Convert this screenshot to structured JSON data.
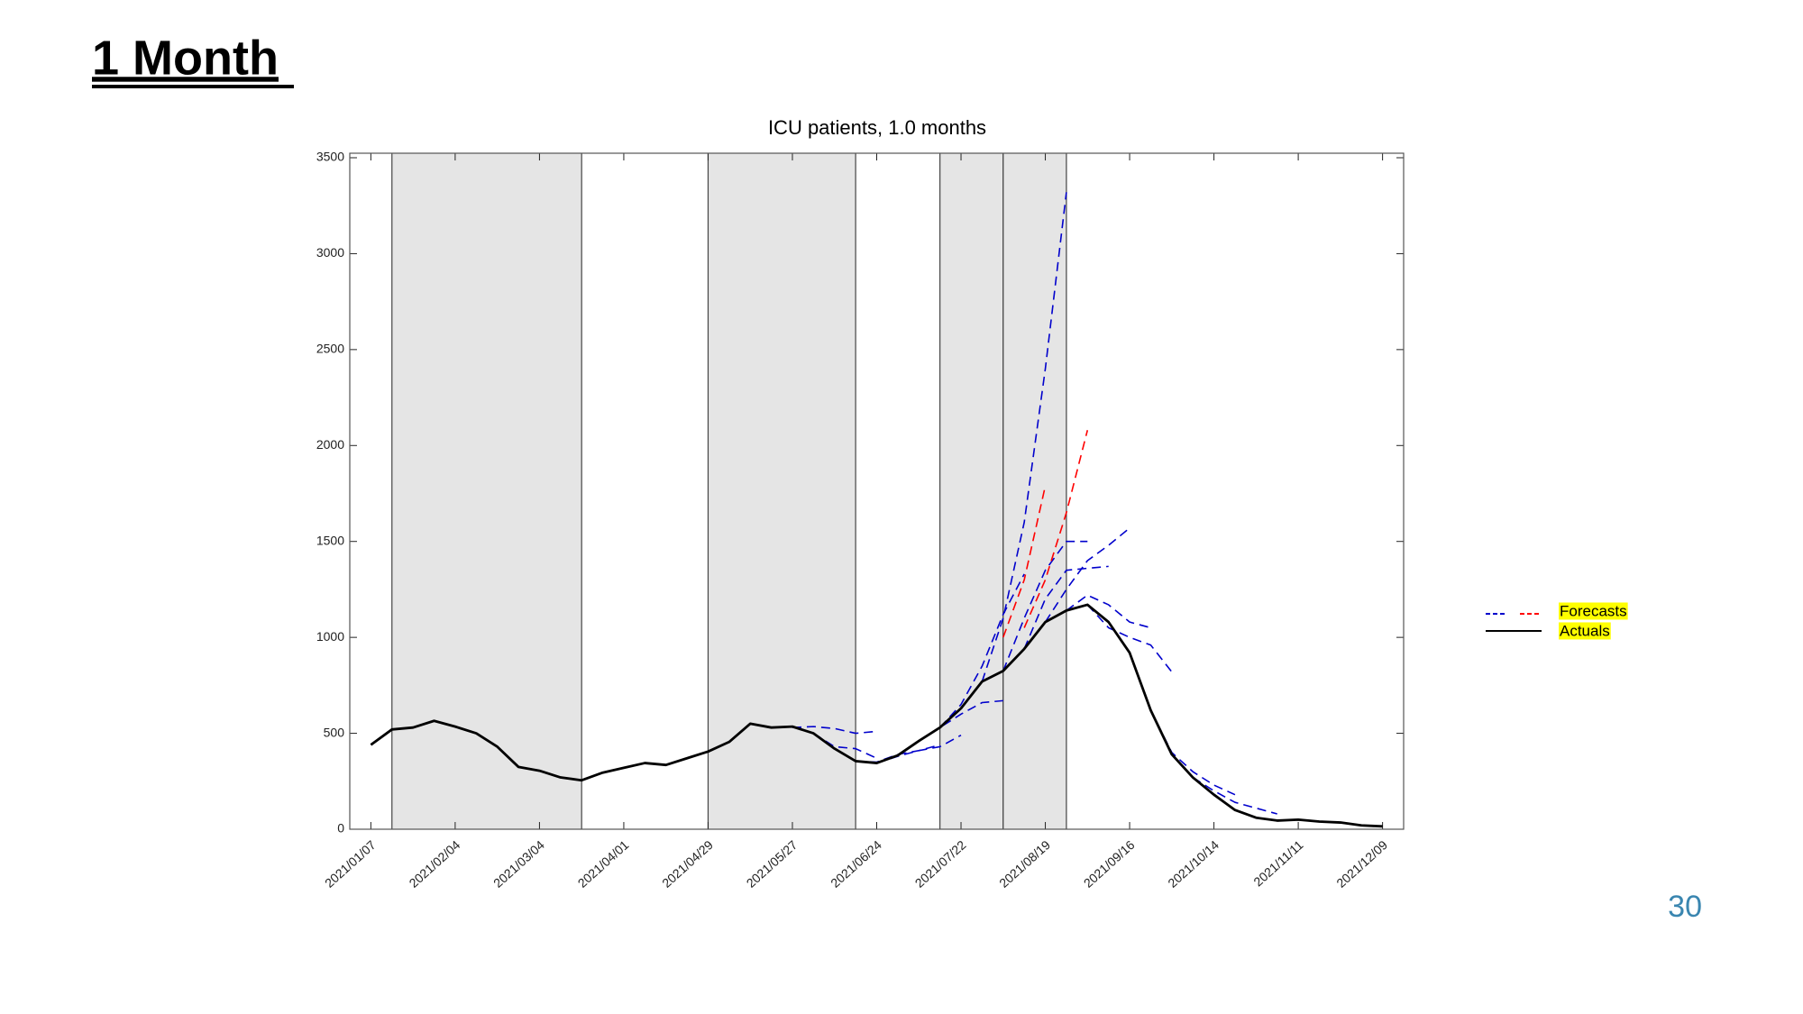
{
  "slide": {
    "title": "1 Month",
    "page_number": 30
  },
  "chart_data": {
    "type": "line",
    "title": "ICU patients, 1.0 months",
    "xlim": [
      "2020/12/31",
      "2021/12/16"
    ],
    "xticks": [
      "2021/01/07",
      "2021/02/04",
      "2021/03/04",
      "2021/04/01",
      "2021/04/29",
      "2021/05/27",
      "2021/06/24",
      "2021/07/22",
      "2021/08/19",
      "2021/09/16",
      "2021/10/14",
      "2021/11/11",
      "2021/12/09"
    ],
    "ylim": [
      0,
      3500
    ],
    "yticks": [
      0,
      500,
      1000,
      1500,
      2000,
      2500,
      3000,
      3500
    ],
    "shaded_regions": [
      [
        "2021/01/14",
        "2021/03/18"
      ],
      [
        "2021/04/29",
        "2021/06/17"
      ],
      [
        "2021/07/15",
        "2021/08/05"
      ],
      [
        "2021/08/05",
        "2021/08/26"
      ]
    ],
    "x": [
      "2021/01/07",
      "2021/01/14",
      "2021/01/21",
      "2021/01/28",
      "2021/02/04",
      "2021/02/11",
      "2021/02/18",
      "2021/02/25",
      "2021/03/04",
      "2021/03/11",
      "2021/03/18",
      "2021/03/25",
      "2021/04/01",
      "2021/04/08",
      "2021/04/15",
      "2021/04/22",
      "2021/04/29",
      "2021/05/06",
      "2021/05/13",
      "2021/05/20",
      "2021/05/27",
      "2021/06/03",
      "2021/06/10",
      "2021/06/17",
      "2021/06/24",
      "2021/07/01",
      "2021/07/08",
      "2021/07/15",
      "2021/07/22",
      "2021/07/29",
      "2021/08/05",
      "2021/08/12",
      "2021/08/19",
      "2021/08/26",
      "2021/09/02",
      "2021/09/09",
      "2021/09/16",
      "2021/09/23",
      "2021/09/30",
      "2021/10/07",
      "2021/10/14",
      "2021/10/21",
      "2021/10/28",
      "2021/11/04",
      "2021/11/11",
      "2021/11/18",
      "2021/11/25",
      "2021/12/02",
      "2021/12/09"
    ],
    "series": [
      {
        "name": "Actuals",
        "color": "#000000",
        "values": [
          440,
          520,
          530,
          565,
          535,
          500,
          430,
          325,
          305,
          270,
          255,
          295,
          320,
          345,
          335,
          370,
          405,
          455,
          550,
          530,
          535,
          500,
          420,
          355,
          345,
          385,
          460,
          530,
          630,
          770,
          825,
          940,
          1080,
          1140,
          1170,
          1080,
          920,
          620,
          390,
          270,
          180,
          100,
          60,
          45,
          50,
          40,
          35,
          20,
          15
        ]
      }
    ],
    "forecasts": {
      "name": "Forecasts",
      "series": [
        {
          "color": "#0000cc",
          "x": [
            "2021/05/27",
            "2021/06/03",
            "2021/06/10",
            "2021/06/17",
            "2021/06/24"
          ],
          "values": [
            530,
            535,
            525,
            500,
            510
          ]
        },
        {
          "color": "#0000cc",
          "x": [
            "2021/06/03",
            "2021/06/10",
            "2021/06/17",
            "2021/06/24"
          ],
          "values": [
            500,
            430,
            420,
            370
          ]
        },
        {
          "color": "#0000cc",
          "x": [
            "2021/06/17",
            "2021/06/24",
            "2021/07/01",
            "2021/07/08",
            "2021/07/15"
          ],
          "values": [
            355,
            350,
            390,
            410,
            440
          ]
        },
        {
          "color": "#0000cc",
          "x": [
            "2021/06/24",
            "2021/07/01",
            "2021/07/08",
            "2021/07/15",
            "2021/07/22"
          ],
          "values": [
            345,
            380,
            410,
            430,
            490
          ]
        },
        {
          "color": "#0000cc",
          "x": [
            "2021/07/08",
            "2021/07/15",
            "2021/07/22",
            "2021/07/29",
            "2021/08/05"
          ],
          "values": [
            460,
            530,
            600,
            660,
            670
          ]
        },
        {
          "color": "#0000cc",
          "x": [
            "2021/07/15",
            "2021/07/22",
            "2021/07/29",
            "2021/08/05",
            "2021/08/12"
          ],
          "values": [
            530,
            650,
            850,
            1120,
            1330
          ]
        },
        {
          "color": "#0000cc",
          "x": [
            "2021/07/29",
            "2021/08/05",
            "2021/08/12",
            "2021/08/19",
            "2021/08/26"
          ],
          "values": [
            770,
            1100,
            1600,
            2400,
            3320
          ]
        },
        {
          "color": "#0000cc",
          "x": [
            "2021/08/05",
            "2021/08/12",
            "2021/08/19",
            "2021/08/26",
            "2021/09/02"
          ],
          "values": [
            825,
            1100,
            1350,
            1500,
            1500
          ]
        },
        {
          "color": "#0000cc",
          "x": [
            "2021/08/12",
            "2021/08/19",
            "2021/08/26",
            "2021/09/02",
            "2021/09/09"
          ],
          "values": [
            940,
            1200,
            1350,
            1360,
            1370
          ]
        },
        {
          "color": "#0000cc",
          "x": [
            "2021/08/19",
            "2021/08/26",
            "2021/09/02",
            "2021/09/09",
            "2021/09/16"
          ],
          "values": [
            1080,
            1250,
            1400,
            1480,
            1570
          ]
        },
        {
          "color": "#0000cc",
          "x": [
            "2021/08/26",
            "2021/09/02",
            "2021/09/09",
            "2021/09/16",
            "2021/09/23"
          ],
          "values": [
            1140,
            1220,
            1170,
            1080,
            1050
          ]
        },
        {
          "color": "#0000cc",
          "x": [
            "2021/09/02",
            "2021/09/09",
            "2021/09/16",
            "2021/09/23",
            "2021/09/30"
          ],
          "values": [
            1170,
            1050,
            1000,
            960,
            820
          ]
        },
        {
          "color": "#0000cc",
          "x": [
            "2021/09/23",
            "2021/09/30",
            "2021/10/07",
            "2021/10/14",
            "2021/10/21"
          ],
          "values": [
            620,
            400,
            300,
            230,
            180
          ]
        },
        {
          "color": "#0000cc",
          "x": [
            "2021/10/07",
            "2021/10/14",
            "2021/10/21",
            "2021/10/28",
            "2021/11/04"
          ],
          "values": [
            270,
            200,
            140,
            110,
            80
          ]
        },
        {
          "color": "#ff0000",
          "x": [
            "2021/08/05",
            "2021/08/12",
            "2021/08/19"
          ],
          "values": [
            1000,
            1300,
            1790
          ]
        },
        {
          "color": "#ff0000",
          "x": [
            "2021/08/12",
            "2021/08/19",
            "2021/08/26",
            "2021/09/02"
          ],
          "values": [
            1050,
            1300,
            1650,
            2080
          ]
        }
      ]
    }
  }
}
